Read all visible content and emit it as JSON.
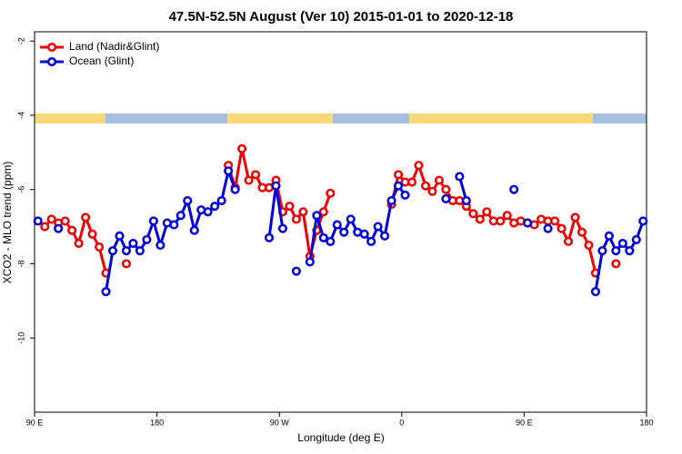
{
  "chart_data": {
    "type": "line",
    "title": "47.5N-52.5N August (Ver 10)   2015-01-01 to 2020-12-18",
    "x_label": "Longitude (deg E)",
    "y_label": "XCO2 - MLO trend (ppm)",
    "xlim": [
      90,
      540
    ],
    "ylim": [
      -12,
      -1.75
    ],
    "xticks": [
      {
        "value": 90,
        "label": "90 E"
      },
      180,
      {
        "value": 270,
        "label": "90 W"
      },
      {
        "value": 360,
        "label": "0"
      },
      {
        "value": 450,
        "label": "90 E"
      },
      {
        "value": 540,
        "label": "180"
      }
    ],
    "yticks": [
      -2,
      -4,
      -6,
      -8,
      -10
    ],
    "legend": "top-left",
    "x": [
      92.5,
      97.5,
      102.5,
      107.5,
      112.5,
      117.5,
      122.5,
      127.5,
      132.5,
      137.5,
      142.5,
      147.5,
      152.5,
      157.5,
      162.5,
      167.5,
      172.5,
      177.5,
      182.5,
      187.5,
      192.5,
      197.5,
      202.5,
      207.5,
      212.5,
      217.5,
      222.5,
      227.5,
      232.5,
      237.5,
      242.5,
      247.5,
      252.5,
      257.5,
      262.5,
      267.5,
      272.5,
      277.5,
      282.5,
      287.5,
      292.5,
      297.5,
      302.5,
      307.5,
      312.5,
      317.5,
      322.5,
      327.5,
      332.5,
      337.5,
      342.5,
      347.5,
      352.5,
      357.5,
      362.5,
      367.5,
      372.5,
      377.5,
      382.5,
      387.5,
      392.5,
      397.5,
      402.5,
      407.5,
      412.5,
      417.5,
      422.5,
      427.5,
      432.5,
      437.5,
      442.5,
      447.5,
      452.5,
      457.5,
      462.5,
      467.5,
      472.5,
      477.5,
      482.5,
      487.5,
      492.5,
      497.5,
      502.5,
      507.5,
      512.5,
      517.5,
      522.5,
      527.5,
      532.5,
      537.5
    ],
    "series": [
      {
        "name": "Land (Nadir&Glint)",
        "color": "#ee0000",
        "values": [
          null,
          -7.0,
          -6.8,
          -6.9,
          -6.85,
          -7.1,
          -7.45,
          -6.75,
          -7.2,
          -7.55,
          -8.25,
          null,
          null,
          -8.0,
          null,
          null,
          null,
          null,
          null,
          null,
          null,
          null,
          null,
          null,
          null,
          null,
          null,
          null,
          -5.35,
          -5.95,
          -4.9,
          -5.75,
          -5.6,
          -5.95,
          -5.95,
          -5.75,
          -6.6,
          -6.45,
          -6.8,
          -6.6,
          -7.8,
          -7.1,
          -6.6,
          -6.1,
          null,
          null,
          null,
          null,
          null,
          null,
          null,
          null,
          -6.4,
          -5.6,
          -5.8,
          -5.8,
          -5.35,
          -5.9,
          -6.05,
          -5.75,
          -6.0,
          -6.3,
          -6.3,
          -6.45,
          -6.65,
          -6.8,
          -6.6,
          -6.85,
          -6.85,
          -6.7,
          -6.9,
          -6.85,
          -6.9,
          -6.95,
          -6.8,
          -6.85,
          -6.85,
          -7.05,
          -7.4,
          -6.75,
          -7.15,
          -7.5,
          -8.25,
          null,
          null,
          -8.0,
          null,
          null,
          null,
          null
        ]
      },
      {
        "name": "Ocean (Glint)",
        "color": "#0000dd",
        "values": [
          -6.85,
          null,
          null,
          -7.05,
          null,
          null,
          null,
          null,
          null,
          null,
          -8.75,
          -7.65,
          -7.25,
          -7.65,
          -7.45,
          -7.65,
          -7.35,
          -6.85,
          -7.5,
          -6.9,
          -6.95,
          -6.7,
          -6.3,
          -7.1,
          -6.55,
          -6.6,
          -6.45,
          -6.3,
          -5.5,
          -6.0,
          null,
          null,
          null,
          null,
          -7.3,
          -5.9,
          -7.05,
          null,
          -8.2,
          null,
          -7.95,
          -6.7,
          -7.3,
          -7.4,
          -6.95,
          -7.15,
          -6.8,
          -7.15,
          -7.2,
          -7.4,
          -7.0,
          -7.25,
          -6.3,
          -5.9,
          -6.15,
          null,
          null,
          null,
          null,
          null,
          -6.25,
          null,
          -5.65,
          -6.3,
          null,
          null,
          null,
          null,
          null,
          null,
          -6.0,
          null,
          -6.9,
          null,
          null,
          -7.05,
          null,
          null,
          null,
          null,
          null,
          null,
          -8.75,
          -7.65,
          -7.25,
          -7.65,
          -7.45,
          -7.65,
          -7.35,
          -6.85
        ]
      }
    ]
  }
}
